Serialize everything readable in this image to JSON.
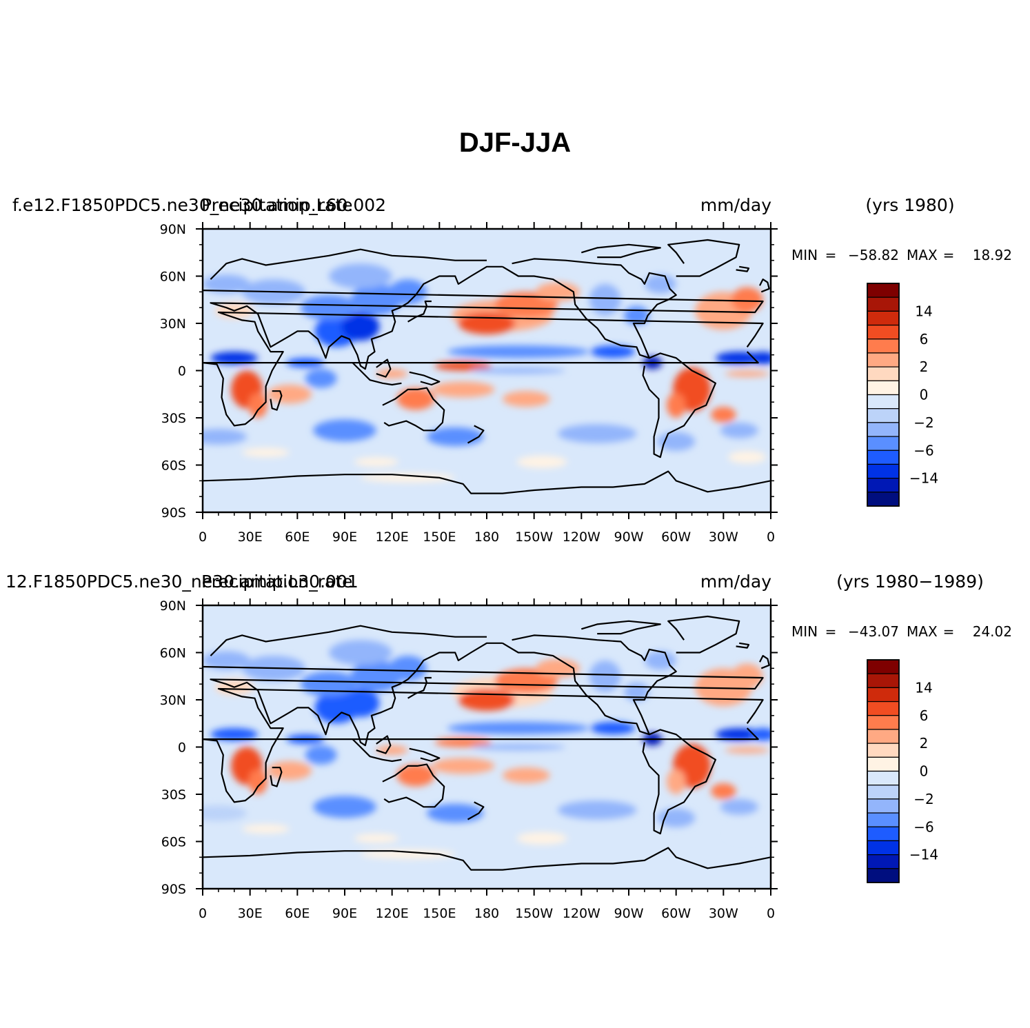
{
  "figure_title": "DJF-JJA",
  "panels": [
    {
      "case_label": "f.e12.F1850PDC5.ne30_ne30.amip.L60.002",
      "variable_label": "Precipitation_rate",
      "units": "mm/day",
      "years": "(yrs  1980)",
      "stats": {
        "min_label": "MIN",
        "eq": "=",
        "min": "−58.82",
        "max_label": "MAX",
        "max": "18.92"
      }
    },
    {
      "case_label": "12.F1850PDC5.ne30_ne30.amip.L30.001",
      "variable_label": "Precipitation_rate",
      "units": "mm/day",
      "years": "(yrs  1980−1989)",
      "stats": {
        "min_label": "MIN",
        "eq": "=",
        "min": "−43.07",
        "max_label": "MAX",
        "max": "24.02"
      }
    }
  ],
  "chart_data": {
    "type": "heatmap",
    "projection": "cylindrical-equidistant",
    "x_ticks": [
      "0",
      "30E",
      "60E",
      "90E",
      "120E",
      "150E",
      "180",
      "150W",
      "120W",
      "90W",
      "60W",
      "30W",
      "0"
    ],
    "y_ticks": [
      "90N",
      "60N",
      "30N",
      "0",
      "30S",
      "60S",
      "90S"
    ],
    "xlim": [
      0,
      360
    ],
    "ylim": [
      -90,
      90
    ],
    "colorbar": {
      "labels": [
        "14",
        "6",
        "2",
        "0",
        "−2",
        "−6",
        "−14"
      ],
      "levels": [
        -20,
        -14,
        -10,
        -6,
        -4,
        -2,
        -1,
        0,
        1,
        2,
        4,
        6,
        10,
        14,
        20
      ],
      "colors": [
        "#000e7f",
        "#0018b5",
        "#0032e6",
        "#1e5cff",
        "#5a8fff",
        "#93b5fb",
        "#bcd3f9",
        "#d9e8fb",
        "#fff3e4",
        "#ffd9c0",
        "#ffa983",
        "#ff7c4d",
        "#f14d22",
        "#cf2b0c",
        "#a81607",
        "#7e0000"
      ]
    }
  }
}
